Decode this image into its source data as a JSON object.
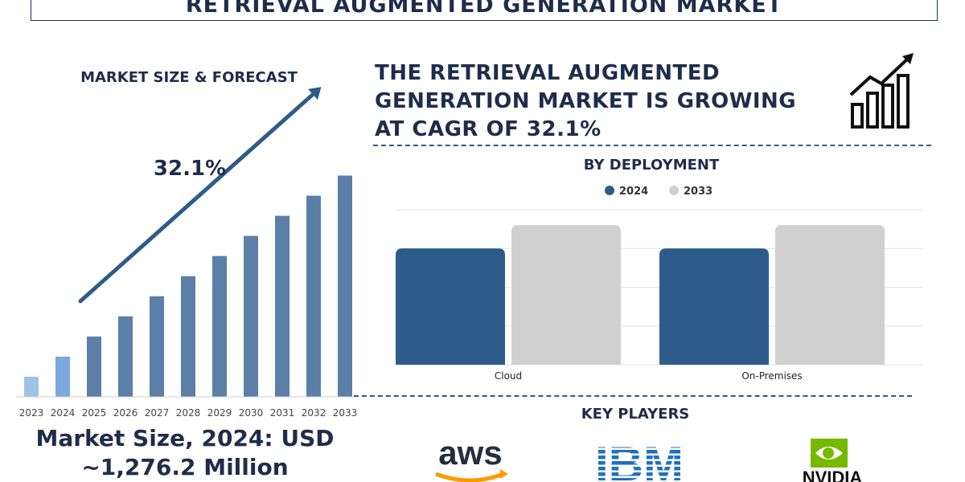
{
  "banner_title": "RETRIEVAL AUGMENTED GENERATION MARKET",
  "headline": "THE RETRIEVAL AUGMENTED GENERATION MARKET IS GROWING AT CAGR OF 32.1%",
  "market_size_text": "Market Size, 2024: USD ~1,276.2 Million",
  "key_players": {
    "title": "KEY PLAYERS",
    "logos": [
      "aws",
      "IBM",
      "NVIDIA"
    ]
  },
  "icons": {
    "growth": "bar-chart-growth-icon",
    "trend": "trend-arrow"
  },
  "colors": {
    "dark_navy": "#1e2d4a",
    "bar_blue": "#2e5c8a",
    "bar_grey": "#d0d0d0",
    "light_bar": "#9ec3e6",
    "mid_bar": "#5b7fa6",
    "aws_orange": "#ff9900",
    "nvidia_green": "#76b900",
    "ibm_blue": "#1f70c1"
  },
  "chart_data": [
    {
      "type": "bar",
      "title": "MARKET SIZE & FORECAST",
      "annotation": "32.1%",
      "categories": [
        "2023",
        "2024",
        "2025",
        "2026",
        "2027",
        "2028",
        "2029",
        "2030",
        "2031",
        "2032",
        "2033"
      ],
      "values": [
        1.0,
        2.0,
        3.0,
        4.0,
        5.0,
        6.0,
        7.0,
        8.0,
        9.0,
        10.0,
        11.0
      ],
      "ylim": [
        0,
        11.5
      ],
      "grid": false
    },
    {
      "type": "bar",
      "title": "BY DEPLOYMENT",
      "categories": [
        "Cloud",
        "On-Premises"
      ],
      "series": [
        {
          "name": "2024",
          "values": [
            3,
            3
          ],
          "color": "#2e5c8a"
        },
        {
          "name": "2033",
          "values": [
            3.6,
            3.6
          ],
          "color": "#d0d0d0"
        }
      ],
      "ylim": [
        0,
        4
      ],
      "grid": true,
      "legend": "top-center"
    }
  ]
}
